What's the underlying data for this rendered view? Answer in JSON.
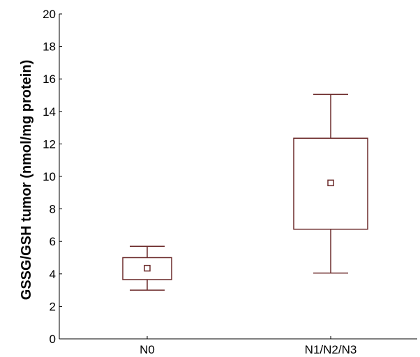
{
  "chart_data": {
    "type": "box",
    "title": "",
    "xlabel": "",
    "ylabel": "GSSG/GSH tumor (nmol/mg protein)",
    "ylim": [
      0,
      20
    ],
    "yticks": [
      "0",
      "2",
      "4",
      "6",
      "8",
      "10",
      "12",
      "14",
      "16",
      "18",
      "20"
    ],
    "categories": [
      "N0",
      "N1/N2/N3"
    ],
    "boxes": [
      {
        "category": "N0",
        "whisker_low": 3.0,
        "q1": 3.65,
        "mean": 4.35,
        "q3": 5.0,
        "whisker_high": 5.7
      },
      {
        "category": "N1/N2/N3",
        "whisker_low": 4.05,
        "q1": 6.75,
        "mean": 9.6,
        "q3": 12.35,
        "whisker_high": 15.05
      }
    ],
    "grid": false,
    "legend": "none",
    "colors": {
      "box": "#6b2a2a",
      "axis": "#000000"
    }
  }
}
